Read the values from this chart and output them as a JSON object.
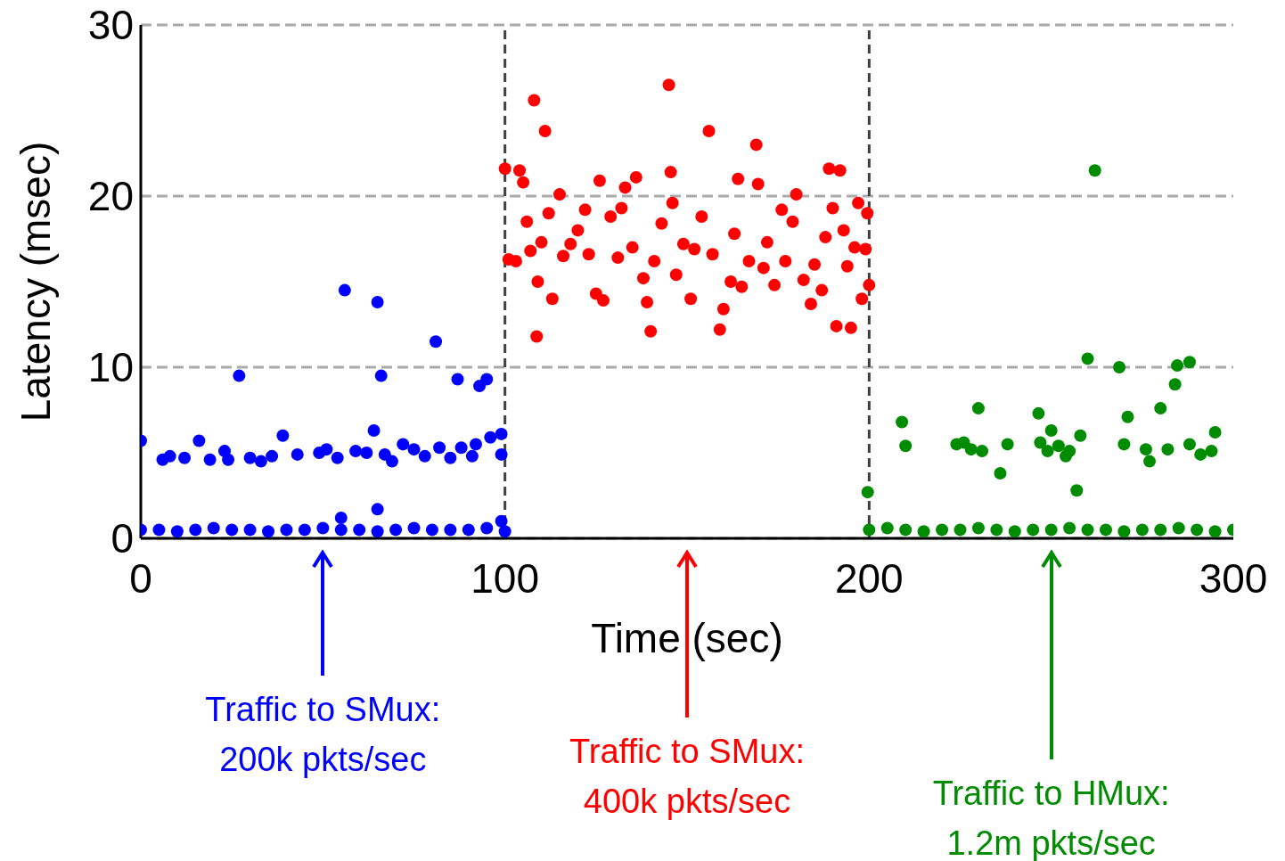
{
  "chart_data": {
    "type": "scatter",
    "xlabel": "Time (sec)",
    "ylabel": "Latency (msec)",
    "xlim": [
      0,
      300
    ],
    "xticks": [
      0,
      100,
      200,
      300
    ],
    "ylim": [
      0,
      30
    ],
    "yticks": [
      0,
      10,
      20,
      30
    ],
    "grid": "y",
    "marker": "circle",
    "ref_lines": [
      {
        "axis": "x",
        "value": 100,
        "color": "#404040",
        "line_style": "dashed"
      },
      {
        "axis": "x",
        "value": 200,
        "color": "#404040",
        "line_style": "dashed"
      }
    ],
    "annotations": [
      "Traffic to SMux:\n200k pkts/sec",
      "Traffic to SMux:\n400k pkts/sec",
      "Traffic to HMux:\n1.2m pkts/sec"
    ],
    "series": [
      {
        "color": "#0000ff",
        "x": [
          0,
          5,
          10,
          15,
          20,
          25,
          30,
          35,
          40,
          45,
          50,
          55,
          60,
          65,
          70,
          75,
          80,
          85,
          90,
          95,
          100,
          55,
          65,
          99,
          0,
          6,
          8,
          12,
          16,
          19,
          23,
          24,
          27,
          30,
          33,
          36,
          39,
          43,
          49,
          51,
          54,
          56,
          59,
          62,
          64,
          65,
          66,
          67,
          69,
          72,
          75,
          78,
          81,
          82,
          85,
          87,
          88,
          91,
          92,
          93,
          95,
          96,
          99,
          99
        ],
        "values": [
          0.5,
          0.5,
          0.4,
          0.5,
          0.6,
          0.5,
          0.5,
          0.4,
          0.5,
          0.5,
          0.6,
          0.5,
          0.5,
          0.4,
          0.5,
          0.6,
          0.5,
          0.5,
          0.5,
          0.6,
          0.4,
          1.2,
          1.7,
          1.0,
          5.7,
          4.6,
          4.8,
          4.7,
          5.7,
          4.6,
          5.1,
          4.6,
          9.5,
          4.7,
          4.5,
          4.8,
          6.0,
          4.9,
          5.0,
          5.2,
          4.7,
          14.5,
          5.1,
          5.0,
          6.3,
          13.8,
          9.5,
          4.9,
          4.5,
          5.5,
          5.2,
          4.8,
          11.5,
          5.3,
          4.7,
          9.3,
          5.3,
          4.8,
          5.5,
          8.9,
          9.3,
          5.9,
          6.1,
          4.9
        ]
      },
      {
        "color": "#ff0000",
        "x": [
          100,
          101,
          103,
          104,
          105,
          106,
          107,
          108,
          108.7,
          109,
          110,
          111,
          112,
          113,
          115,
          116,
          118,
          120,
          122,
          123,
          125,
          126,
          127,
          129,
          131,
          132,
          133,
          135,
          136,
          138,
          139,
          140,
          141,
          143,
          145,
          145.5,
          146,
          147,
          149,
          151,
          152,
          154,
          156,
          157,
          159,
          160,
          162,
          163,
          164,
          165,
          167,
          169,
          169.5,
          171,
          172,
          174,
          176,
          177,
          179,
          180,
          182,
          184,
          185,
          187,
          188,
          189,
          190,
          191,
          192,
          193,
          194,
          195,
          196,
          197,
          198,
          199,
          199.5,
          200
        ],
        "values": [
          21.6,
          16.3,
          16.2,
          21.5,
          20.8,
          18.5,
          16.8,
          25.6,
          11.8,
          15.0,
          17.3,
          23.8,
          19.0,
          14.0,
          20.1,
          16.5,
          17.2,
          18.0,
          19.2,
          16.6,
          14.3,
          20.9,
          13.9,
          18.8,
          16.4,
          19.3,
          20.5,
          17.0,
          21.1,
          15.2,
          13.8,
          12.1,
          16.2,
          18.4,
          26.5,
          21.4,
          19.6,
          15.4,
          17.2,
          14.0,
          16.9,
          18.8,
          23.8,
          16.6,
          12.2,
          13.4,
          15.0,
          17.8,
          21.0,
          14.7,
          16.2,
          23.0,
          20.7,
          15.8,
          17.3,
          14.8,
          19.2,
          16.2,
          18.5,
          20.1,
          15.1,
          13.7,
          16.0,
          14.5,
          17.6,
          21.6,
          19.3,
          12.4,
          21.5,
          18.0,
          15.9,
          12.3,
          17.0,
          19.6,
          14.0,
          16.9,
          19.0,
          14.8
        ]
      },
      {
        "color": "#008c00",
        "x": [
          200,
          205,
          210,
          215,
          220,
          225,
          230,
          235,
          240,
          245,
          250,
          255,
          260,
          265,
          270,
          275,
          280,
          285,
          290,
          295,
          300,
          199.6,
          209,
          210,
          224,
          226,
          228,
          230,
          231,
          236,
          238,
          246.5,
          247,
          249,
          250,
          252,
          254,
          255,
          257,
          258,
          260,
          262,
          268.7,
          271,
          270,
          276,
          277,
          280,
          282,
          284,
          284.6,
          288,
          288,
          291,
          294,
          295
        ],
        "values": [
          0.5,
          0.6,
          0.5,
          0.4,
          0.5,
          0.5,
          0.6,
          0.5,
          0.4,
          0.5,
          0.5,
          0.6,
          0.5,
          0.5,
          0.4,
          0.5,
          0.5,
          0.6,
          0.5,
          0.4,
          0.5,
          2.7,
          6.8,
          5.4,
          5.5,
          5.6,
          5.2,
          7.6,
          5.1,
          3.8,
          5.5,
          7.3,
          5.6,
          5.1,
          6.3,
          5.4,
          4.8,
          5.1,
          2.8,
          6.0,
          10.5,
          21.5,
          10.0,
          7.1,
          5.5,
          5.2,
          4.5,
          7.6,
          5.2,
          9.0,
          10.1,
          10.3,
          5.5,
          4.9,
          5.1,
          6.2
        ]
      }
    ]
  }
}
